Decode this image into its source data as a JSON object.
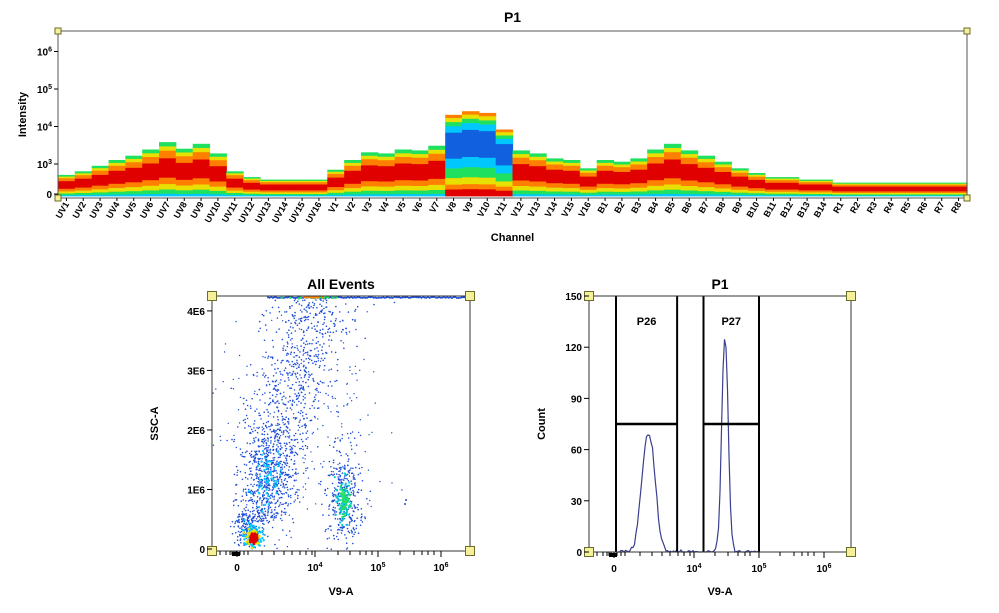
{
  "chart_data": [
    {
      "type": "heatmap",
      "title": "P1",
      "xlabel": "Channel",
      "ylabel": "Intensity",
      "y_scale": "log",
      "y_ticks": [
        "0",
        "10^3",
        "10^4",
        "10^5",
        "10^6"
      ],
      "categories": [
        "UV1",
        "UV2",
        "UV3",
        "UV4",
        "UV5",
        "UV6",
        "UV7",
        "UV8",
        "UV9",
        "UV10",
        "UV11",
        "UV12",
        "UV13",
        "UV14",
        "UV15",
        "UV16",
        "V1",
        "V2",
        "V3",
        "V4",
        "V5",
        "V6",
        "V7",
        "V8",
        "V9",
        "V10",
        "V11",
        "V12",
        "V13",
        "V14",
        "V15",
        "V16",
        "B1",
        "B2",
        "B3",
        "B4",
        "B5",
        "B6",
        "B7",
        "B8",
        "B9",
        "B10",
        "B11",
        "B12",
        "B13",
        "B14",
        "R1",
        "R2",
        "R3",
        "R4",
        "R5",
        "R6",
        "R7",
        "R8"
      ],
      "series": [
        {
          "values": [
            400,
            500,
            700,
            1000,
            1300,
            1900,
            3000,
            2000,
            2700,
            1500,
            500,
            350,
            300,
            300,
            300,
            300,
            550,
            1000,
            1600,
            1500,
            1900,
            1800,
            2400,
            16000,
            20000,
            18000,
            6500,
            1800,
            1500,
            1100,
            1000,
            600,
            1000,
            900,
            1100,
            1900,
            2700,
            1800,
            1300,
            900,
            600,
            450,
            350,
            350,
            300,
            300,
            250,
            250,
            250,
            250,
            250,
            250,
            250,
            250
          ]
        }
      ],
      "color_scale": [
        "#1060e0",
        "#00c8ff",
        "#20e060",
        "#e8e000",
        "#ff8000",
        "#e00000"
      ]
    },
    {
      "type": "scatter",
      "title": "All Events",
      "xlabel": "V9-A",
      "ylabel": "SSC-A",
      "x_scale": "biexponential",
      "x_ticks": [
        "0",
        "10^4",
        "10^5",
        "10^6"
      ],
      "y_ticks": [
        "0",
        "1E6",
        "2E6",
        "3E6",
        "4E6"
      ],
      "ylim": [
        0,
        4200000
      ],
      "populations": [
        {
          "x": 1000,
          "y": 200000,
          "density": "high"
        },
        {
          "x": 6000,
          "y": 1300000,
          "density": "medium"
        },
        {
          "x": 28000,
          "y": 800000,
          "density": "medium"
        },
        {
          "x": 15000,
          "y": 3000000,
          "density": "low"
        }
      ]
    },
    {
      "type": "line",
      "title": "P1",
      "xlabel": "V9-A",
      "ylabel": "Count",
      "x_scale": "biexponential",
      "x_ticks": [
        "0",
        "10^4",
        "10^5",
        "10^6"
      ],
      "y_ticks": [
        "0",
        "30",
        "60",
        "90",
        "120",
        "150"
      ],
      "ylim": [
        0,
        150
      ],
      "series": [
        {
          "peaks": [
            {
              "x": 2000,
              "count": 71
            },
            {
              "x": 30000,
              "count": 127
            }
          ]
        }
      ],
      "gates": [
        {
          "label": "P26",
          "x_range": [
            0,
            5500
          ],
          "count_level": 75
        },
        {
          "label": "P27",
          "x_range": [
            14000,
            100000
          ],
          "count_level": 75
        }
      ]
    }
  ]
}
